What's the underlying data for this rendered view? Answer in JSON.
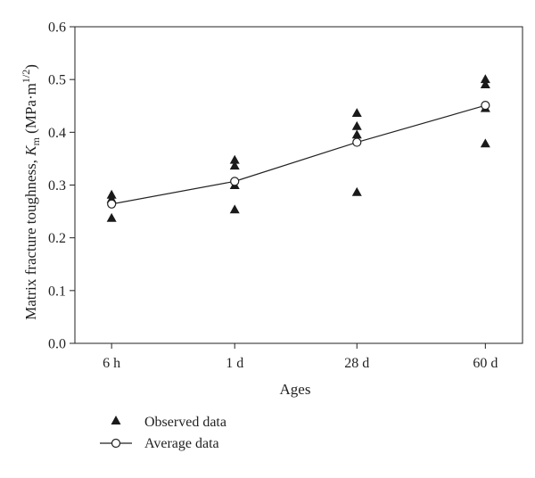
{
  "chart_data": {
    "type": "scatter",
    "title": "",
    "xlabel": "Ages",
    "ylabel_prefix": "Matrix fracture toughness, ",
    "ylabel_symbol": "K",
    "ylabel_subscript": "m",
    "ylabel_unit_open": " (MPa·m",
    "ylabel_unit_power": "1/2",
    "ylabel_unit_close": ")",
    "categories": [
      "6 h",
      "1 d",
      "28 d",
      "60 d"
    ],
    "ylim": [
      0,
      0.6
    ],
    "yticks": [
      "0.0",
      "0.1",
      "0.2",
      "0.3",
      "0.4",
      "0.5",
      "0.6"
    ],
    "grid": false,
    "legend_position": "bottom-left",
    "series": [
      {
        "name": "Observed data",
        "marker": "filled-triangle",
        "points": [
          {
            "x": "6 h",
            "y": 0.281
          },
          {
            "x": "6 h",
            "y": 0.273
          },
          {
            "x": "6 h",
            "y": 0.237
          },
          {
            "x": "1 d",
            "y": 0.347
          },
          {
            "x": "1 d",
            "y": 0.336
          },
          {
            "x": "1 d",
            "y": 0.299
          },
          {
            "x": "1 d",
            "y": 0.253
          },
          {
            "x": "28 d",
            "y": 0.436
          },
          {
            "x": "28 d",
            "y": 0.411
          },
          {
            "x": "28 d",
            "y": 0.395
          },
          {
            "x": "28 d",
            "y": 0.286
          },
          {
            "x": "60 d",
            "y": 0.5
          },
          {
            "x": "60 d",
            "y": 0.49
          },
          {
            "x": "60 d",
            "y": 0.445
          },
          {
            "x": "60 d",
            "y": 0.378
          }
        ]
      },
      {
        "name": "Average data",
        "marker": "open-circle-line",
        "values": [
          0.264,
          0.307,
          0.381,
          0.451
        ]
      }
    ],
    "colors": {
      "axis": "#222222",
      "marker": "#1a1a1a",
      "open_marker_fill": "#ffffff"
    }
  }
}
